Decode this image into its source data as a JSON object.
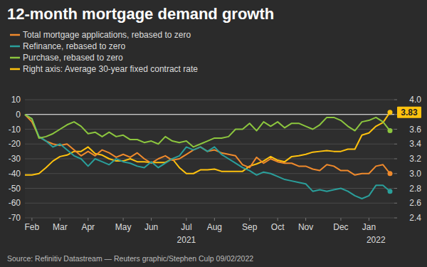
{
  "chart_data": {
    "type": "line",
    "title": "12-month mortgage demand growth",
    "source": "Source: Refinitiv Datastream — Reuters graphic/Stephen Culp 09/02/2022",
    "categories": [
      null,
      "Feb",
      null,
      null,
      null,
      "Mar",
      null,
      null,
      null,
      "Apr",
      null,
      null,
      null,
      null,
      "May",
      null,
      null,
      null,
      "Jun",
      null,
      null,
      null,
      null,
      "Jul",
      null,
      null,
      null,
      "Aug",
      null,
      null,
      null,
      null,
      "Sep",
      null,
      null,
      null,
      "Oct",
      null,
      null,
      null,
      "Nov",
      null,
      null,
      null,
      null,
      "Dec",
      null,
      null,
      null,
      "Jan",
      null,
      null,
      null
    ],
    "year_labels": [
      {
        "label": "2021",
        "index": 23
      },
      {
        "label": "2022",
        "index": 50
      }
    ],
    "series": [
      {
        "name": "Total mortgage applications, rebased to zero",
        "color": "#f08a2c",
        "marker": "end",
        "values": [
          0,
          -5,
          -15,
          -18,
          -20,
          -21,
          -20,
          -24,
          -28,
          -25,
          -28,
          -24,
          -26,
          -29,
          -27,
          -29,
          -26,
          -30,
          -33,
          -30,
          -28,
          -31,
          -30,
          -27,
          -24,
          -22,
          -25,
          -24,
          -26,
          -27,
          -28,
          -34,
          -36,
          -29,
          -33,
          -30,
          -32,
          -33,
          -33,
          -35,
          -35,
          -37,
          -38,
          -34,
          -35,
          -38,
          -38,
          -41,
          -40,
          -40,
          -35,
          -34,
          -40
        ]
      },
      {
        "name": "Refinance, rebased to zero",
        "color": "#2a9f9b",
        "marker": "end",
        "values": [
          0,
          -3,
          -15,
          -18,
          -22,
          -20,
          -24,
          -28,
          -30,
          -35,
          -30,
          -32,
          -34,
          -30,
          -32,
          -33,
          -35,
          -36,
          -32,
          -36,
          -33,
          -30,
          -28,
          -22,
          -24,
          -22,
          -25,
          -22,
          -27,
          -30,
          -33,
          -36,
          -38,
          -41,
          -39,
          -40,
          -42,
          -44,
          -45,
          -46,
          -47,
          -52,
          -51,
          -52,
          -51,
          -50,
          -52,
          -55,
          -57,
          -55,
          -48,
          -48,
          -52
        ]
      },
      {
        "name": "Purchase, rebased to zero",
        "color": "#8cc63e",
        "marker": "end",
        "values": [
          0,
          -3,
          -16,
          -15,
          -13,
          -10,
          -7,
          -5,
          -8,
          -13,
          -12,
          -15,
          -12,
          -15,
          -14,
          -17,
          -17,
          -19,
          -18,
          -20,
          -15,
          -18,
          -19,
          -18,
          -22,
          -20,
          -18,
          -16,
          -16,
          -15,
          -10,
          -10,
          -6,
          -11,
          -5,
          -8,
          -5,
          -9,
          -6,
          -6,
          -8,
          -10,
          -7,
          -2,
          -2,
          -4,
          -8,
          -11,
          -5,
          -4,
          -2,
          -5,
          -11
        ]
      },
      {
        "name": "Right axis: Average 30-year fixed contract rate",
        "color": "#ffc20e",
        "axis": "y2",
        "marker": "none",
        "values": [
          2.98,
          2.98,
          3.0,
          3.08,
          3.17,
          3.23,
          3.25,
          3.3,
          3.3,
          3.36,
          3.27,
          3.25,
          3.2,
          3.17,
          3.17,
          3.2,
          3.16,
          3.16,
          3.15,
          3.15,
          3.15,
          3.2,
          3.08,
          3.0,
          3.0,
          3.05,
          3.05,
          3.06,
          3.03,
          3.03,
          3.03,
          3.03,
          3.1,
          3.13,
          3.17,
          3.23,
          3.18,
          3.16,
          3.23,
          3.24,
          3.26,
          3.29,
          3.3,
          3.31,
          3.3,
          3.3,
          3.33,
          3.33,
          3.52,
          3.55,
          3.64,
          3.69,
          3.83
        ]
      }
    ],
    "annotations": [
      {
        "text": "3.83",
        "x": 52,
        "y": 3.83,
        "axis": "y2"
      }
    ],
    "ylim": [
      -70,
      10
    ],
    "yticks": [
      10,
      0,
      -10,
      -20,
      -30,
      -40,
      -50,
      -60,
      -70
    ],
    "y2lim": [
      2.4,
      4.0
    ],
    "y2ticks": [
      2.4,
      2.6,
      2.8,
      {
        "value": 3,
        "label": "3.0"
      },
      3.2,
      3.4,
      3.6,
      3.8,
      {
        "value": 4,
        "label": "4.0"
      }
    ],
    "grid": true,
    "legend": "top-left"
  }
}
